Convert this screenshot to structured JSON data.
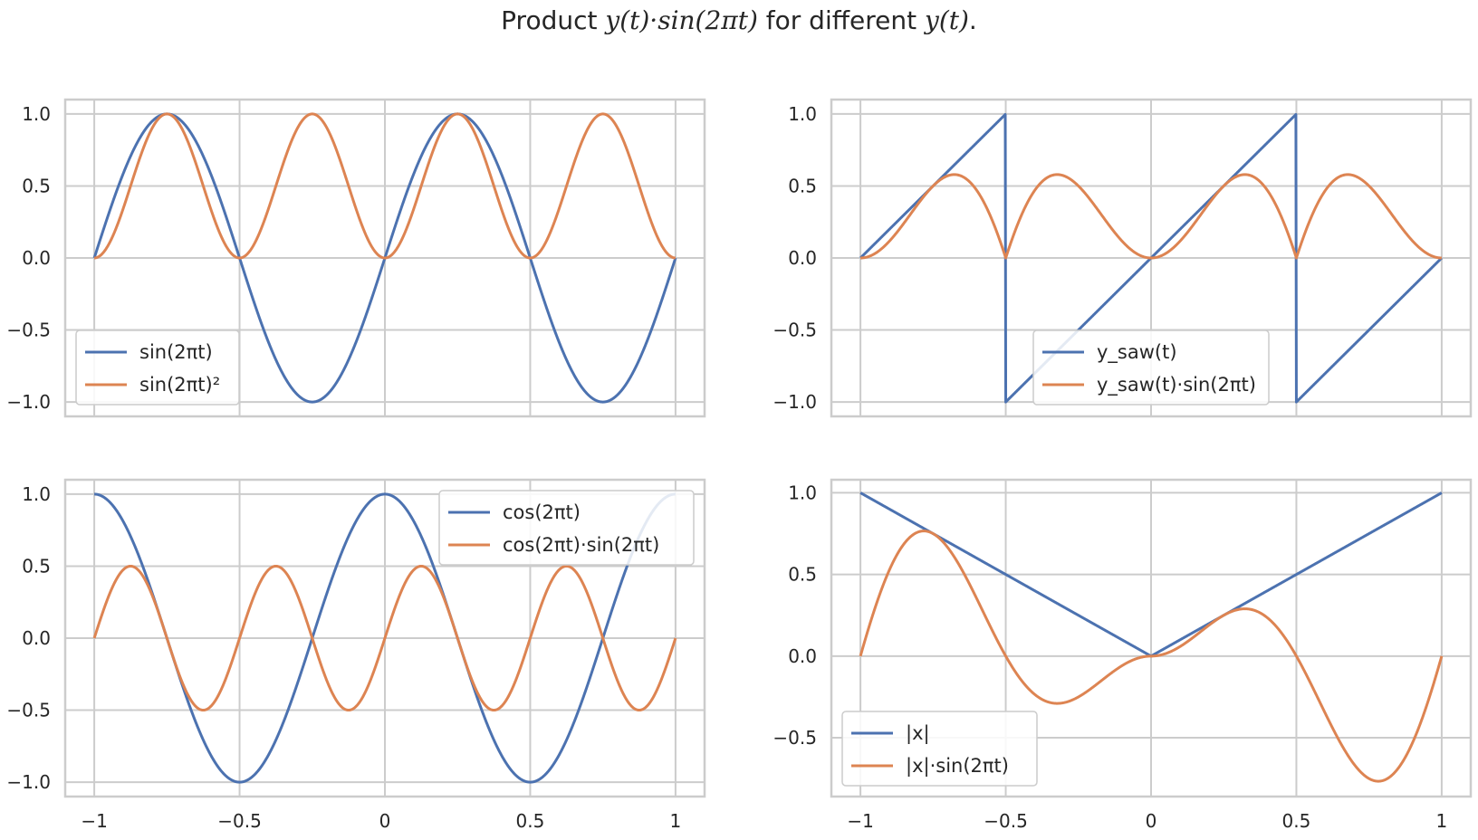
{
  "figure": {
    "title_prefix": "Product ",
    "title_math": "y(t)·sin(2πt)",
    "title_mid": " for different ",
    "title_math2": "y(t)",
    "title_suffix": "."
  },
  "colors": {
    "blue": "#4c72b0",
    "orange": "#dd8452",
    "grid": "#cccccc",
    "text": "#262626"
  },
  "chart_data": [
    {
      "type": "line",
      "position": "top-left",
      "xlim": [
        -1.1,
        1.1
      ],
      "ylim": [
        -1.1,
        1.1
      ],
      "xticks": [
        -1,
        -0.5,
        0,
        0.5,
        1
      ],
      "yticks": [
        1.0,
        0.5,
        0.0,
        -0.5,
        -1.0
      ],
      "ytick_labels": [
        "1.0",
        "0.5",
        "0.0",
        "−0.5",
        "−1.0"
      ],
      "x_tick_labels_visible": false,
      "grid": true,
      "legend_position": "lower-left",
      "x_range": [
        -1,
        1
      ],
      "series": [
        {
          "name": "sin(2πt)",
          "color": "#4c72b0",
          "func": "sin",
          "x": [
            -1,
            -0.75,
            -0.5,
            -0.25,
            0,
            0.25,
            0.5,
            0.75,
            1
          ],
          "values": [
            0,
            1,
            0,
            -1,
            0,
            1,
            0,
            -1,
            0
          ]
        },
        {
          "name": "sin(2πt)²",
          "color": "#dd8452",
          "func": "sin2",
          "x": [
            -1,
            -0.75,
            -0.5,
            -0.25,
            0,
            0.25,
            0.5,
            0.75,
            1
          ],
          "values": [
            0,
            1,
            0,
            1,
            0,
            1,
            0,
            1,
            0
          ]
        }
      ]
    },
    {
      "type": "line",
      "position": "top-right",
      "xlim": [
        -1.1,
        1.1
      ],
      "ylim": [
        -1.1,
        1.1
      ],
      "xticks": [
        -1,
        -0.5,
        0,
        0.5,
        1
      ],
      "yticks": [
        1.0,
        0.5,
        0.0,
        -0.5,
        -1.0
      ],
      "ytick_labels": [
        "1.0",
        "0.5",
        "0.0",
        "−0.5",
        "−1.0"
      ],
      "x_tick_labels_visible": false,
      "grid": true,
      "legend_position": "lower-center",
      "x_range": [
        -1,
        1
      ],
      "series": [
        {
          "name": "y_saw(t)",
          "color": "#4c72b0",
          "func": "saw",
          "x": [
            -1,
            -0.5,
            -0.5,
            0.5,
            0.5,
            1
          ],
          "values": [
            0,
            1,
            -1,
            1,
            -1,
            0
          ]
        },
        {
          "name": "y_saw(t)·sin(2πt)",
          "color": "#dd8452",
          "func": "sawsin",
          "x": [
            -1,
            -0.68,
            -0.5,
            -0.32,
            0,
            0.32,
            0.5,
            0.68,
            1
          ],
          "values": [
            0,
            0.58,
            0,
            0.58,
            0,
            0.58,
            0,
            0.58,
            0
          ]
        }
      ]
    },
    {
      "type": "line",
      "position": "bottom-left",
      "xlim": [
        -1.1,
        1.1
      ],
      "ylim": [
        -1.1,
        1.1
      ],
      "xticks": [
        -1,
        -0.5,
        0,
        0.5,
        1
      ],
      "yticks": [
        1.0,
        0.5,
        0.0,
        -0.5,
        -1.0
      ],
      "ytick_labels": [
        "1.0",
        "0.5",
        "0.0",
        "−0.5",
        "−1.0"
      ],
      "x_tick_labels_visible": true,
      "grid": true,
      "legend_position": "upper-right",
      "x_range": [
        -1,
        1
      ],
      "series": [
        {
          "name": "cos(2πt)",
          "color": "#4c72b0",
          "func": "cos",
          "x": [
            -1,
            -0.5,
            0,
            0.5,
            1
          ],
          "values": [
            1,
            -1,
            1,
            -1,
            1
          ]
        },
        {
          "name": "cos(2πt)·sin(2πt)",
          "color": "#dd8452",
          "func": "cossin",
          "x": [
            -1,
            -0.875,
            -0.625,
            -0.375,
            -0.125,
            0.125,
            0.375,
            0.625,
            0.875,
            1
          ],
          "values": [
            0,
            0.5,
            -0.5,
            0.5,
            -0.5,
            0.5,
            -0.5,
            0.5,
            -0.5,
            0
          ]
        }
      ]
    },
    {
      "type": "line",
      "position": "bottom-right",
      "xlim": [
        -1.1,
        1.1
      ],
      "ylim": [
        -0.86,
        1.08
      ],
      "xticks": [
        -1,
        -0.5,
        0,
        0.5,
        1
      ],
      "yticks": [
        1.0,
        0.5,
        0.0,
        -0.5
      ],
      "ytick_labels": [
        "1.0",
        "0.5",
        "0.0",
        "−0.5"
      ],
      "x_tick_labels_visible": true,
      "grid": true,
      "legend_position": "lower-left",
      "x_range": [
        -1,
        1
      ],
      "series": [
        {
          "name": "|x|",
          "color": "#4c72b0",
          "func": "abs",
          "x": [
            -1,
            0,
            1
          ],
          "values": [
            1,
            0,
            1
          ]
        },
        {
          "name": "|x|·sin(2πt)",
          "color": "#dd8452",
          "func": "abssin",
          "x": [
            -1,
            -0.78,
            -0.5,
            -0.32,
            0,
            0.32,
            0.5,
            0.78,
            1
          ],
          "values": [
            0,
            0.77,
            0,
            -0.29,
            0,
            0.29,
            0,
            -0.77,
            0
          ]
        }
      ]
    }
  ],
  "x_tick_labels": [
    "−1",
    "−0.5",
    "0",
    "0.5",
    "1"
  ]
}
